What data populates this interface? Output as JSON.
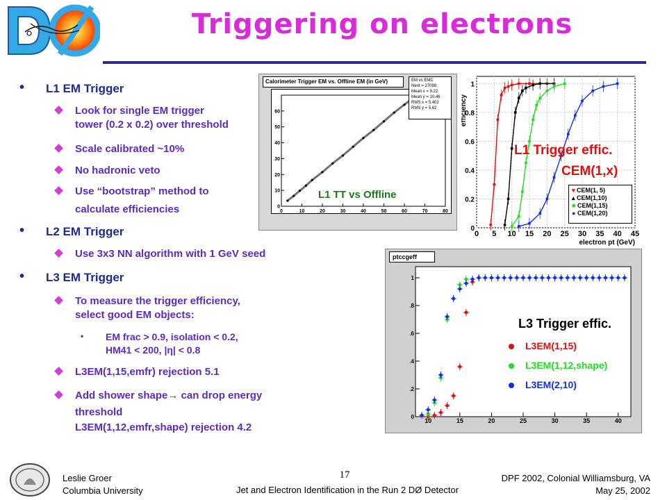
{
  "title": "Triggering on electrons",
  "logo_text": "DØ",
  "bullets": {
    "l1": {
      "heading": "L1 EM Trigger",
      "items": [
        "Look for single EM trigger",
        "tower (0.2 x 0.2) over threshold",
        "Scale calibrated ~10%",
        "No hadronic veto",
        "Use “bootstrap” method to",
        "calculate efficiencies"
      ]
    },
    "l2": {
      "heading": "L2 EM Trigger",
      "items": [
        "Use 3x3 NN algorithm with 1 GeV seed"
      ]
    },
    "l3": {
      "heading": "L3 EM Trigger",
      "items": [
        "To measure the trigger efficiency,",
        "select good EM objects:",
        "EM frac > 0.9, isolation < 0.2,",
        "HM41 < 200, |η| < 0.8",
        "L3EM(1,15,emfr) rejection 5.1",
        "Add shower shape",
        "can drop energy",
        "threshold",
        "L3EM(1,12,emfr,shape)  rejection 4.2"
      ]
    }
  },
  "plot1": {
    "title": "Calorimeter Trigger EM vs. Offline EM (in GeV)",
    "label": "L1 TT vs Offline",
    "stats": [
      "EM vs EMC",
      "Nent = 27098",
      "Mean x =  9.22",
      "Mean y = 10.46",
      "RMS x = 5.402",
      "RMS y =  5.62"
    ]
  },
  "plot2": {
    "label1": "L1 Trigger effic.",
    "label2": "CEM(1,x)",
    "ylabel": "efficiency",
    "xlabel": "electron pt (GeV)",
    "legend": [
      "CEM(1,  5)",
      "CEM(1,10)",
      "CEM(1,15)",
      "CEM(1,20)"
    ]
  },
  "plot3": {
    "title": "ptccgeff",
    "label": "L3 Trigger effic.",
    "legend": [
      "L3EM(1,15)",
      "L3EM(1,12,shape)",
      "L3EM(2,10)"
    ]
  },
  "chart_data": [
    {
      "type": "scatter",
      "title": "Calorimeter Trigger EM vs. Offline EM (in GeV)",
      "xlim": [
        0,
        80
      ],
      "ylim": [
        0,
        70
      ],
      "x_ticks": [
        "0",
        "10",
        "20",
        "30",
        "40",
        "50",
        "60",
        "70",
        "80"
      ],
      "y_ticks": [
        "0",
        "10",
        "20",
        "30",
        "40",
        "50",
        "60"
      ],
      "series": [
        {
          "x": [
            3,
            6,
            9,
            12,
            15,
            20,
            25,
            30,
            35,
            40,
            45,
            50,
            55,
            60,
            65
          ],
          "y": [
            3.5,
            6.5,
            9.8,
            13,
            16.5,
            21.5,
            27,
            32,
            37.5,
            43,
            48,
            53.5,
            59,
            64,
            69
          ]
        }
      ]
    },
    {
      "type": "line",
      "ylabel": "efficiency",
      "xlabel": "electron pt (GeV)",
      "xlim": [
        0,
        45
      ],
      "ylim": [
        0,
        1.05
      ],
      "x_ticks": [
        "0",
        "5",
        "10",
        "15",
        "20",
        "25",
        "30",
        "35",
        "40",
        "45"
      ],
      "y_ticks": [
        "0",
        "0.2",
        "0.4",
        "0.6",
        "0.8",
        "1"
      ],
      "colors": [
        "#e01010",
        "#000000",
        "#22dd22",
        "#1030e0"
      ],
      "series": [
        {
          "name": "CEM(1,  5)",
          "x": [
            4,
            5,
            6,
            7,
            8,
            9,
            10,
            12,
            15,
            20
          ],
          "y": [
            0.02,
            0.3,
            0.75,
            0.92,
            0.97,
            0.98,
            0.99,
            1.0,
            1.0,
            1.0
          ]
        },
        {
          "name": "CEM(1,10)",
          "x": [
            8,
            9,
            10,
            11,
            12,
            13,
            14,
            16,
            18,
            22
          ],
          "y": [
            0.02,
            0.2,
            0.55,
            0.8,
            0.9,
            0.95,
            0.97,
            0.99,
            1.0,
            1.0
          ]
        },
        {
          "name": "CEM(1,15)",
          "x": [
            10,
            12,
            13,
            14,
            15,
            16,
            17,
            18,
            20,
            22,
            25
          ],
          "y": [
            0.01,
            0.08,
            0.25,
            0.45,
            0.6,
            0.75,
            0.85,
            0.9,
            0.95,
            0.98,
            1.0
          ]
        },
        {
          "name": "CEM(1,20)",
          "x": [
            12,
            15,
            18,
            20,
            22,
            24,
            26,
            28,
            30,
            33,
            36,
            40
          ],
          "y": [
            0.01,
            0.03,
            0.1,
            0.2,
            0.35,
            0.5,
            0.65,
            0.78,
            0.88,
            0.95,
            0.98,
            1.0
          ]
        }
      ]
    },
    {
      "type": "scatter",
      "title": "ptccgeff",
      "xlim": [
        8,
        42
      ],
      "ylim": [
        0,
        1.08
      ],
      "x_ticks": [
        "10",
        "15",
        "20",
        "25",
        "30",
        "35",
        "40"
      ],
      "y_ticks": [
        "0",
        "0.2",
        "0.4",
        "0.6",
        "0.8",
        "1"
      ],
      "colors": [
        "#e01010",
        "#22dd22",
        "#1030e0"
      ],
      "series": [
        {
          "name": "L3EM(1,15)",
          "x": [
            10,
            11,
            12,
            13,
            14,
            15,
            16,
            17,
            18
          ],
          "y": [
            0.0,
            0.01,
            0.03,
            0.08,
            0.15,
            0.36,
            0.75,
            0.97,
            1.0
          ]
        },
        {
          "name": "L3EM(1,12,shape)",
          "x": [
            10,
            11,
            12,
            13,
            14,
            15,
            16
          ],
          "y": [
            0.02,
            0.1,
            0.28,
            0.7,
            0.85,
            0.95,
            0.99
          ]
        },
        {
          "name": "L3EM(2,10)",
          "x": [
            9,
            10,
            11,
            12,
            13,
            14,
            15,
            16,
            17,
            18,
            19,
            20,
            21,
            22,
            23,
            24,
            25,
            26,
            27,
            28,
            29,
            30,
            31,
            32,
            33,
            34,
            35,
            36,
            37,
            38,
            39,
            40,
            41
          ],
          "y": [
            0.01,
            0.05,
            0.12,
            0.3,
            0.72,
            0.85,
            0.92,
            0.96,
            0.99,
            1.0,
            1.0,
            1.0,
            1.0,
            1.0,
            1.0,
            1.0,
            1.0,
            1.0,
            1.0,
            1.0,
            1.0,
            1.0,
            1.0,
            1.0,
            1.0,
            1.0,
            1.0,
            1.0,
            1.0,
            1.0,
            1.0,
            1.0,
            1.0
          ]
        }
      ]
    }
  ],
  "footer": {
    "author": "Leslie Groer",
    "affiliation": "Columbia University",
    "talk": "Jet and Electron Identification in the Run 2 DØ Detector",
    "page": "17",
    "conference": "DPF 2002, Colonial Williamsburg, VA",
    "date": "May 25, 2002"
  }
}
